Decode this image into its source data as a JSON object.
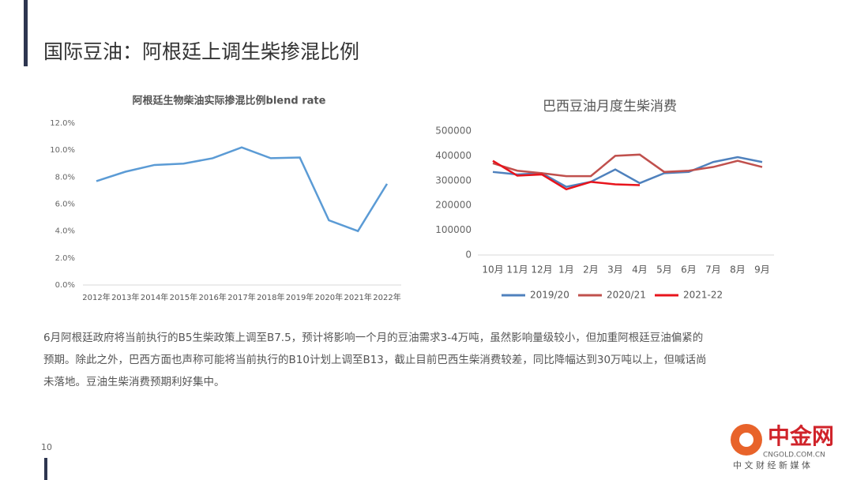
{
  "header": {
    "title": "国际豆油：阿根廷上调生柴掺混比例"
  },
  "chart_data": [
    {
      "type": "line",
      "title": "阿根廷生物柴油实际掺混比例blend rate",
      "categories": [
        "2012年",
        "2013年",
        "2014年",
        "2015年",
        "2016年",
        "2017年",
        "2018年",
        "2019年",
        "2020年",
        "2021年",
        "2022年"
      ],
      "series": [
        {
          "name": null,
          "color": "#5b9bd5",
          "values": [
            7.7,
            8.4,
            8.9,
            9.0,
            9.4,
            10.2,
            9.4,
            9.45,
            4.8,
            4.0,
            7.5
          ]
        }
      ],
      "ylim": [
        0,
        12
      ],
      "yticks": [
        {
          "value": 0,
          "label": "0.0%"
        },
        {
          "value": 2,
          "label": "2.0%"
        },
        {
          "value": 4,
          "label": "4.0%"
        },
        {
          "value": 6,
          "label": "6.0%"
        },
        {
          "value": 8,
          "label": "8.0%"
        },
        {
          "value": 10,
          "label": "10.0%"
        },
        {
          "value": 12,
          "label": "12.0%"
        }
      ],
      "grid": false
    },
    {
      "type": "line",
      "title": "巴西豆油月度生柴消费",
      "categories": [
        "10月",
        "11月",
        "12月",
        "1月",
        "2月",
        "3月",
        "4月",
        "5月",
        "6月",
        "7月",
        "8月",
        "9月"
      ],
      "series": [
        {
          "name": "2019/20",
          "color": "#4f81bd",
          "values": [
            335000,
            325000,
            330000,
            275000,
            295000,
            345000,
            290000,
            330000,
            335000,
            375000,
            395000,
            375000
          ]
        },
        {
          "name": "2020/21",
          "color": "#c0504d",
          "values": [
            370000,
            340000,
            330000,
            318000,
            318000,
            400000,
            405000,
            335000,
            340000,
            355000,
            380000,
            355000
          ]
        },
        {
          "name": "2021-22",
          "color": "#e8141c",
          "values": [
            380000,
            320000,
            325000,
            265000,
            295000,
            285000,
            282000,
            null,
            null,
            null,
            null,
            null
          ]
        }
      ],
      "ylim": [
        0,
        500000
      ],
      "yticks": [
        0,
        100000,
        200000,
        300000,
        400000,
        500000
      ],
      "grid": false,
      "legend": "bottom"
    }
  ],
  "body": {
    "lines": [
      "6月阿根廷政府将当前执行的B5生柴政策上调至B7.5，预计将影响一个月的豆油需求3-4万吨，虽然影响量级较小，但加重阿根廷豆油偏紧的",
      "预期。除此之外，巴西方面也声称可能将当前执行的B10计划上调至B13，截止目前巴西生柴消费较差，同比降幅达到30万吨以上，但喊话尚",
      "未落地。豆油生柴消费预期利好集中。"
    ]
  },
  "footer": {
    "page": "10",
    "logo": "中金网",
    "logo_url": "CNGOLD.COM.CN",
    "logo_tagline": "中 文 财 经 新 媒 体"
  }
}
